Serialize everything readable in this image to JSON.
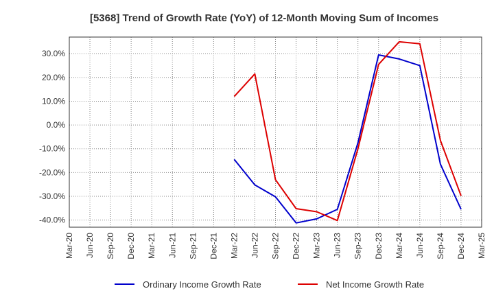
{
  "chart_data": {
    "type": "line",
    "title": "[5368]  Trend of Growth Rate (YoY) of 12-Month Moving Sum of Incomes",
    "xlabel": "",
    "ylabel": "",
    "categories": [
      "Mar-20",
      "Jun-20",
      "Sep-20",
      "Dec-20",
      "Mar-21",
      "Jun-21",
      "Sep-21",
      "Dec-21",
      "Mar-22",
      "Jun-22",
      "Sep-22",
      "Dec-22",
      "Mar-23",
      "Jun-23",
      "Sep-23",
      "Dec-23",
      "Mar-24",
      "Jun-24",
      "Sep-24",
      "Dec-24",
      "Mar-25"
    ],
    "y_ticks": [
      -40,
      -30,
      -20,
      -10,
      0,
      10,
      20,
      30
    ],
    "y_tick_labels": [
      "-40.0%",
      "-30.0%",
      "-20.0%",
      "-10.0%",
      "0.0%",
      "10.0%",
      "20.0%",
      "30.0%"
    ],
    "ylim": [
      -43,
      37
    ],
    "grid": true,
    "legend_position": "bottom",
    "series": [
      {
        "name": "Ordinary Income Growth Rate",
        "color": "#0000cc",
        "values": [
          null,
          null,
          null,
          null,
          null,
          null,
          null,
          null,
          -14.5,
          -25.2,
          -30.2,
          -41.2,
          -39.5,
          -35.5,
          -7.5,
          29.5,
          27.8,
          25.0,
          -16.5,
          -35.5,
          null
        ]
      },
      {
        "name": "Net Income Growth Rate",
        "color": "#dd0000",
        "values": [
          null,
          null,
          null,
          null,
          null,
          null,
          null,
          null,
          12.0,
          21.5,
          -23.0,
          -35.2,
          -36.5,
          -40.2,
          -10.0,
          25.5,
          35.0,
          34.2,
          -6.5,
          -29.8,
          null
        ]
      }
    ]
  }
}
